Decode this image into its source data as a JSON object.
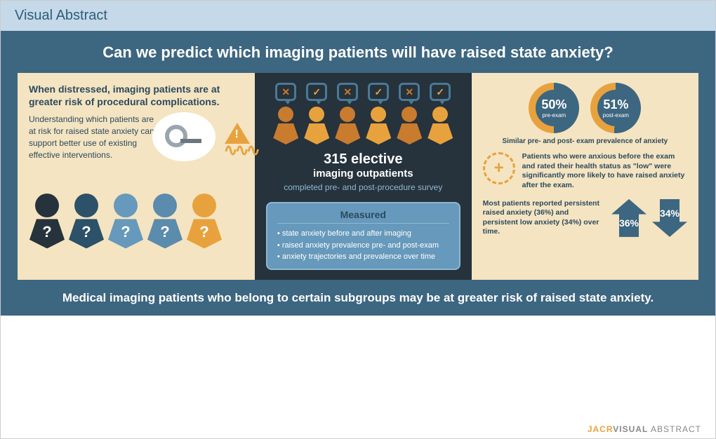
{
  "header": "Visual Abstract",
  "title": "Can we predict which imaging patients will have raised state anxiety?",
  "panel1": {
    "headline": "When distressed, imaging patients are at greater risk of procedural complications.",
    "subtext": "Understanding which patients are at risk for raised state anxiety can support better use of existing effective interventions.",
    "people_colors": [
      "#26323c",
      "#2c5168",
      "#6699bb",
      "#5b8bad",
      "#e8a23d"
    ]
  },
  "panel2": {
    "icon_states": [
      "x",
      "check",
      "x",
      "check",
      "x",
      "check"
    ],
    "icon_colors": [
      "#c97b2e",
      "#e8a23d",
      "#c97b2e",
      "#e8a23d",
      "#c97b2e",
      "#e8a23d"
    ],
    "bubble_border": "#4a7a96",
    "count": "315 elective",
    "count_label": "imaging outpatients",
    "survey": "completed pre- and post-procedure survey",
    "measured_title": "Measured",
    "measured_items": [
      "state anxiety before and after imaging",
      "raised anxiety prevalence pre- and post-exam",
      "anxiety trajectories and prevalence over time"
    ]
  },
  "panel3": {
    "donut1": {
      "pct": "50%",
      "label": "pre-exam",
      "fill": 50,
      "ring_color": "#e8a23d",
      "fill_color": "#3d6680"
    },
    "donut2": {
      "pct": "51%",
      "label": "post-exam",
      "fill": 51,
      "ring_color": "#e8a23d",
      "fill_color": "#3d6680"
    },
    "similar": "Similar pre- and post- exam prevalence of anxiety",
    "finding": "Patients who were anxious before the exam and rated their health status as \"low\" were significantly more likely to have raised anxiety after the exam.",
    "arrows_text": "Most patients reported persistent raised anxiety (36%) and persistent low anxiety (34%) over time.",
    "arrow_up": "36%",
    "arrow_down": "34%"
  },
  "conclusion": "Medical imaging patients who belong to certain subgroups may be at greater risk of raised state anxiety.",
  "footer": {
    "brand": "JACR",
    "v": "VISUAL",
    "a": " ABSTRACT"
  },
  "colors": {
    "header_bg": "#c6d9e8",
    "main_bg": "#3d6680",
    "cream": "#f4e4c1",
    "dark": "#26323c",
    "orange": "#e8a23d"
  }
}
